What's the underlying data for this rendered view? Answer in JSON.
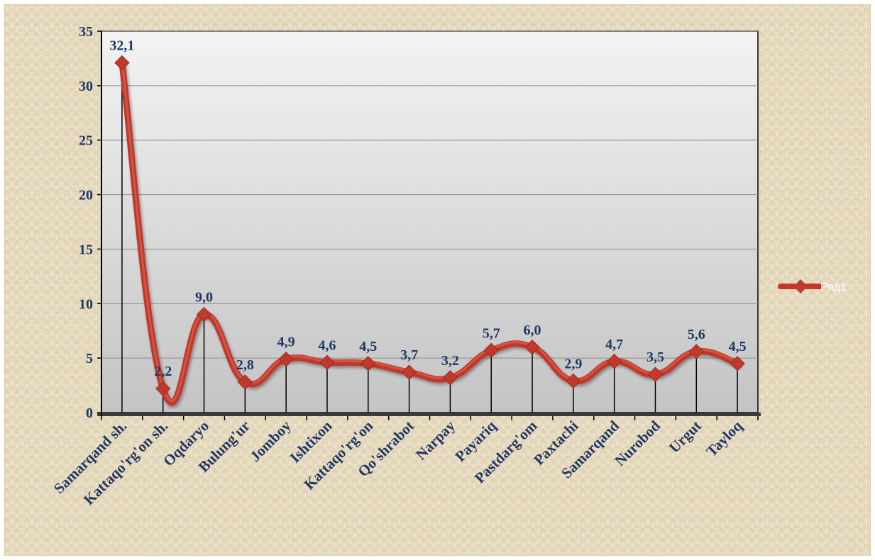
{
  "chart_data": {
    "type": "line",
    "categories": [
      "Samarqand sh.",
      "Kattaqo'rg'on sh.",
      "Oqdaryo",
      "Bulung'ur",
      "Jomboy",
      "Ishtixon",
      "Kattaqo'rg'on",
      "Qo'shrabot",
      "Narpay",
      "Payariq",
      "Pastdarg'om",
      "Paxtachi",
      "Samarqand",
      "Nurobod",
      "Urgut",
      "Tayloq"
    ],
    "series": [
      {
        "name": "Ряд1",
        "values": [
          32.1,
          2.2,
          9.0,
          2.8,
          4.9,
          4.6,
          4.5,
          3.7,
          3.2,
          5.7,
          6.0,
          2.9,
          4.7,
          3.5,
          5.6,
          4.5
        ],
        "labels": [
          "32,1",
          "2,2",
          "9,0",
          "2,8",
          "4,9",
          "4,6",
          "4,5",
          "3,7",
          "3,2",
          "5,7",
          "6,0",
          "2,9",
          "4,7",
          "3,5",
          "5,6",
          "4,5"
        ]
      }
    ],
    "y_ticks": [
      "0",
      "5",
      "10",
      "15",
      "20",
      "25",
      "30",
      "35"
    ],
    "ylim": [
      0,
      35
    ],
    "grid": true,
    "drop_lines": true,
    "smooth": true,
    "legend_position": "right",
    "colors": {
      "series": "#c0392b",
      "series_light": "#e06b5e",
      "label_text": "#1f3864",
      "axis_text": "#1f3864",
      "grid": "#8c8c8c",
      "background": "#e7dcc2"
    }
  }
}
